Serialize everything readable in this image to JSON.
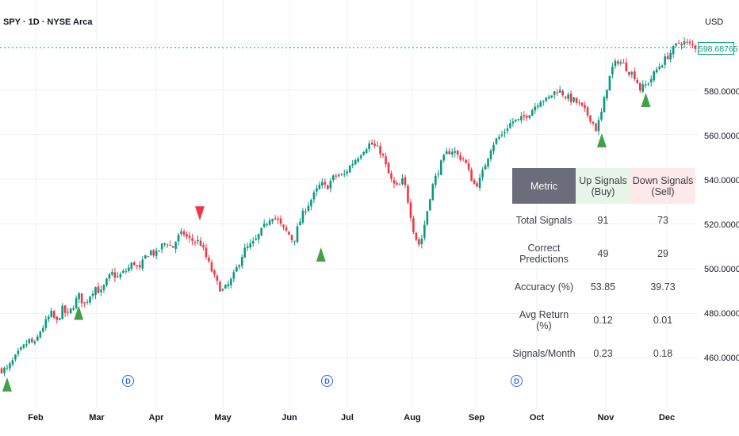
{
  "header": {
    "symbol": "SPY · 1D · NYSE Arca",
    "currency": "USD"
  },
  "price_axis": {
    "current_price": "598.68765",
    "ticks": [
      "580.00000",
      "560.00000",
      "540.00000",
      "520.00000",
      "500.00000",
      "480.00000",
      "460.00000"
    ]
  },
  "time_axis": {
    "months": [
      "Feb",
      "Mar",
      "Apr",
      "May",
      "Jun",
      "Jul",
      "Aug",
      "Sep",
      "Oct",
      "Nov",
      "Dec"
    ]
  },
  "dividend_marker": "D",
  "stats_table": {
    "headers": [
      "Metric",
      "Up Signals (Buy)",
      "Down Signals (Sell)"
    ],
    "rows": [
      [
        "Total Signals",
        "91",
        "73"
      ],
      [
        "Correct Predictions",
        "49",
        "29"
      ],
      [
        "Accuracy (%)",
        "53.85",
        "39.73"
      ],
      [
        "Avg Return (%)",
        "0.12",
        "0.01"
      ],
      [
        "Signals/Month",
        "0.23",
        "0.18"
      ]
    ]
  },
  "colors": {
    "up": "#089981",
    "down": "#f23645",
    "signal_up": "#43a047",
    "signal_down": "#f23645",
    "dividend": "#2962ff",
    "grid": "#eef0f3"
  },
  "chart_data": {
    "type": "candlestick",
    "series_anchors": [
      [
        1,
        455
      ],
      [
        3,
        462
      ],
      [
        5,
        468
      ],
      [
        6,
        466
      ],
      [
        7,
        472
      ],
      [
        9,
        480
      ],
      [
        10,
        476
      ],
      [
        11,
        482
      ],
      [
        12,
        479
      ],
      [
        14,
        488
      ],
      [
        15,
        484
      ],
      [
        17,
        492
      ],
      [
        18,
        489
      ],
      [
        19,
        494
      ],
      [
        20,
        498
      ],
      [
        21,
        496
      ],
      [
        23,
        500
      ],
      [
        24,
        503
      ],
      [
        25,
        499
      ],
      [
        26,
        505
      ],
      [
        27,
        508
      ],
      [
        28,
        506
      ],
      [
        29,
        510
      ],
      [
        30,
        512
      ],
      [
        31,
        509
      ],
      [
        32,
        514
      ],
      [
        33,
        516
      ],
      [
        34,
        513
      ],
      [
        36,
        512
      ],
      [
        37,
        506
      ],
      [
        38,
        500
      ],
      [
        39,
        494
      ],
      [
        40,
        490
      ],
      [
        41,
        492
      ],
      [
        42,
        496
      ],
      [
        43,
        502
      ],
      [
        44,
        508
      ],
      [
        46,
        512
      ],
      [
        47,
        516
      ],
      [
        48,
        520
      ],
      [
        49,
        524
      ],
      [
        50,
        522
      ],
      [
        51,
        518
      ],
      [
        52,
        516
      ],
      [
        53,
        512
      ],
      [
        54,
        520
      ],
      [
        55,
        526
      ],
      [
        56,
        530
      ],
      [
        57,
        534
      ],
      [
        58,
        538
      ],
      [
        59,
        536
      ],
      [
        60,
        540
      ],
      [
        61,
        542
      ],
      [
        62,
        541
      ],
      [
        63,
        545
      ],
      [
        64,
        548
      ],
      [
        65,
        551
      ],
      [
        66,
        554
      ],
      [
        67,
        556
      ],
      [
        68,
        554
      ],
      [
        69,
        552
      ],
      [
        70,
        544
      ],
      [
        71,
        538
      ],
      [
        72,
        536
      ],
      [
        73,
        540
      ],
      [
        74,
        528
      ],
      [
        75,
        515
      ],
      [
        76,
        510
      ],
      [
        77,
        522
      ],
      [
        78,
        535
      ],
      [
        79,
        542
      ],
      [
        80,
        548
      ],
      [
        81,
        552
      ],
      [
        82,
        553
      ],
      [
        83,
        550
      ],
      [
        84,
        549
      ],
      [
        85,
        542
      ],
      [
        86,
        537
      ],
      [
        87,
        540
      ],
      [
        88,
        548
      ],
      [
        89,
        555
      ],
      [
        90,
        558
      ],
      [
        91,
        560
      ],
      [
        92,
        564
      ],
      [
        93,
        566
      ],
      [
        94,
        566
      ],
      [
        95,
        568
      ],
      [
        96,
        570
      ],
      [
        97,
        573
      ],
      [
        98,
        576
      ],
      [
        99,
        575
      ],
      [
        100,
        578
      ],
      [
        101,
        580
      ],
      [
        102,
        578
      ],
      [
        103,
        576
      ],
      [
        104,
        575
      ],
      [
        105,
        573
      ],
      [
        106,
        570
      ],
      [
        107,
        567
      ],
      [
        108,
        562
      ],
      [
        109,
        570
      ],
      [
        110,
        582
      ],
      [
        111,
        590
      ],
      [
        112,
        593
      ],
      [
        113,
        591
      ],
      [
        114,
        588
      ],
      [
        115,
        586
      ],
      [
        116,
        580
      ],
      [
        117,
        582
      ],
      [
        118,
        585
      ],
      [
        119,
        589
      ],
      [
        120,
        592
      ],
      [
        121,
        595
      ],
      [
        122,
        598
      ],
      [
        123,
        601
      ],
      [
        124,
        601
      ],
      [
        125,
        600
      ],
      [
        126,
        599
      ]
    ],
    "signals": [
      {
        "dir": "up",
        "x": 1,
        "price": 448
      },
      {
        "dir": "up",
        "x": 14,
        "price": 480
      },
      {
        "dir": "down",
        "x": 36,
        "price": 525
      },
      {
        "dir": "up",
        "x": 58,
        "price": 506
      },
      {
        "dir": "up",
        "x": 109,
        "price": 557
      },
      {
        "dir": "up",
        "x": 117,
        "price": 575
      }
    ],
    "dividends": [
      23,
      60,
      93
    ],
    "ylim": [
      450,
      605
    ],
    "xlim": [
      0,
      126
    ]
  }
}
